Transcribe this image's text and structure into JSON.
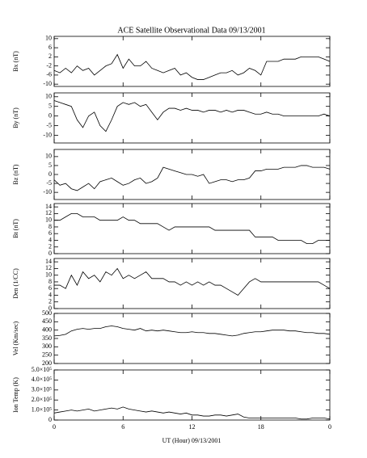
{
  "chart_data": {
    "type": "line",
    "title": "ACE Satellite Observational Data   09/13/2001",
    "x_label": "UT (Hour)   09/13/2001",
    "color": "#000000",
    "xlim": [
      0,
      24
    ],
    "xticks": [
      0,
      6,
      12,
      18,
      {
        "value": 24,
        "label": "0"
      }
    ],
    "x": [
      0,
      0.5,
      1,
      1.5,
      2,
      2.5,
      3,
      3.5,
      4,
      4.5,
      5,
      5.5,
      6,
      6.5,
      7,
      7.5,
      8,
      8.5,
      9,
      9.5,
      10,
      10.5,
      11,
      11.5,
      12,
      12.5,
      13,
      13.5,
      14,
      14.5,
      15,
      15.5,
      16,
      16.5,
      17,
      17.5,
      18,
      18.5,
      19,
      19.5,
      20,
      20.5,
      21,
      21.5,
      22,
      22.5,
      23,
      23.5,
      24
    ],
    "panels": [
      {
        "y_label": "Bx (nT)",
        "ylim": [
          -11,
          11
        ],
        "yticks": [
          -10,
          -6,
          -2,
          2,
          6,
          10
        ],
        "values": [
          -4,
          -5,
          -3,
          -5,
          -2,
          -4,
          -3,
          -6,
          -4,
          -2,
          -1,
          3,
          -3,
          1,
          -2,
          -2,
          0,
          -3,
          -4,
          -5,
          -4,
          -3,
          -6,
          -5,
          -7,
          -8,
          -8,
          -7,
          -6,
          -5,
          -5,
          -4,
          -6,
          -5,
          -3,
          -4,
          -6,
          0,
          0,
          0,
          1,
          1,
          1,
          2,
          2,
          2,
          2,
          1,
          0
        ]
      },
      {
        "y_label": "By (nT)",
        "ylim": [
          -14,
          12
        ],
        "yticks": [
          -10,
          -5,
          0,
          5,
          10
        ],
        "values": [
          8,
          7,
          6,
          5,
          -2,
          -6,
          0,
          2,
          -5,
          -8,
          -2,
          5,
          7,
          6,
          7,
          5,
          6,
          2,
          -2,
          2,
          4,
          4,
          3,
          4,
          3,
          3,
          2,
          3,
          3,
          2,
          3,
          2,
          3,
          3,
          2,
          1,
          1,
          2,
          1,
          1,
          0,
          0,
          0,
          0,
          0,
          0,
          0,
          1,
          0
        ]
      },
      {
        "y_label": "Bz (nT)",
        "ylim": [
          -14,
          14
        ],
        "yticks": [
          -10,
          -5,
          0,
          5,
          10
        ],
        "values": [
          -3,
          -6,
          -5,
          -8,
          -9,
          -7,
          -5,
          -8,
          -4,
          -3,
          -2,
          -4,
          -6,
          -5,
          -3,
          -2,
          -5,
          -4,
          -2,
          4,
          3,
          2,
          1,
          0,
          0,
          -1,
          0,
          -5,
          -4,
          -3,
          -3,
          -4,
          -3,
          -3,
          -2,
          2,
          2,
          3,
          3,
          3,
          4,
          4,
          4,
          5,
          5,
          4,
          4,
          4,
          3
        ]
      },
      {
        "y_label": "Bt (nT)",
        "ylim": [
          0,
          15
        ],
        "yticks": [
          0,
          2,
          4,
          6,
          8,
          10,
          12,
          14
        ],
        "values": [
          10,
          10,
          11,
          12,
          12,
          11,
          11,
          11,
          10,
          10,
          10,
          10,
          11,
          10,
          10,
          9,
          9,
          9,
          9,
          8,
          7,
          8,
          8,
          8,
          8,
          8,
          8,
          8,
          7,
          7,
          7,
          7,
          7,
          7,
          7,
          5,
          5,
          5,
          5,
          4,
          4,
          4,
          4,
          4,
          3,
          3,
          4,
          4,
          4
        ]
      },
      {
        "y_label": "Den (1/CC)",
        "ylim": [
          0,
          15
        ],
        "yticks": [
          0,
          2,
          4,
          6,
          8,
          10,
          12,
          14
        ],
        "values": [
          7,
          7,
          6,
          10,
          7,
          11,
          9,
          10,
          8,
          11,
          10,
          12,
          9,
          10,
          9,
          10,
          11,
          9,
          9,
          9,
          8,
          8,
          7,
          8,
          7,
          8,
          7,
          8,
          7,
          7,
          6,
          5,
          4,
          6,
          8,
          9,
          8,
          8,
          8,
          8,
          8,
          8,
          8,
          8,
          8,
          8,
          8,
          7,
          6
        ]
      },
      {
        "y_label": "Vel (Km/sec)",
        "ylim": [
          200,
          500
        ],
        "yticks": [
          200,
          250,
          300,
          350,
          400,
          450,
          500
        ],
        "values": [
          365,
          368,
          375,
          395,
          405,
          410,
          405,
          410,
          410,
          420,
          425,
          420,
          410,
          405,
          400,
          410,
          395,
          400,
          395,
          400,
          395,
          390,
          385,
          385,
          390,
          385,
          385,
          380,
          380,
          375,
          370,
          365,
          370,
          380,
          385,
          390,
          390,
          395,
          400,
          400,
          400,
          395,
          395,
          390,
          385,
          385,
          380,
          380,
          375
        ]
      },
      {
        "y_label": "Ion Temp (K)",
        "ylim": [
          0,
          500000
        ],
        "yticks": [
          0,
          {
            "value": 100000,
            "label": "1.0×10⁵"
          },
          {
            "value": 200000,
            "label": "2.0×10⁵"
          },
          {
            "value": 300000,
            "label": "3.0×10⁵"
          },
          {
            "value": 400000,
            "label": "4.0×10⁵"
          },
          {
            "value": 500000,
            "label": "5.0×10⁵"
          }
        ],
        "values": [
          70000,
          80000,
          90000,
          100000,
          90000,
          100000,
          110000,
          90000,
          100000,
          110000,
          120000,
          110000,
          130000,
          110000,
          100000,
          90000,
          80000,
          90000,
          80000,
          70000,
          80000,
          70000,
          60000,
          70000,
          50000,
          50000,
          40000,
          40000,
          50000,
          50000,
          40000,
          50000,
          60000,
          30000,
          20000,
          20000,
          20000,
          20000,
          20000,
          20000,
          20000,
          20000,
          20000,
          10000,
          10000,
          20000,
          20000,
          20000,
          10000
        ]
      }
    ]
  }
}
